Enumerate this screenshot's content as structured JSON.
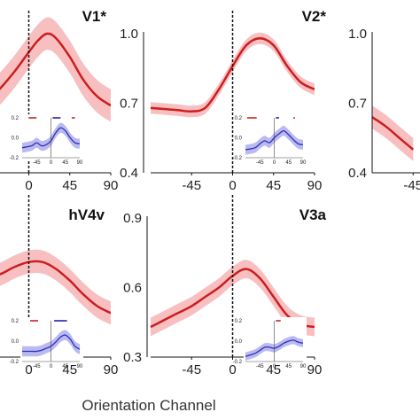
{
  "figure": {
    "xlabel": "Orientation Channel"
  },
  "chart_data": [
    {
      "type": "line",
      "title": "V1*",
      "xlim": [
        -90,
        90
      ],
      "ylim": [
        0.4,
        1.0
      ],
      "yticks": [],
      "xticks": [
        "0",
        "45",
        "90"
      ],
      "series": [
        {
          "x": [
            -90,
            -75,
            -60,
            -45,
            -30,
            -15,
            0,
            10,
            20,
            30,
            45,
            60,
            75,
            90
          ],
          "y": [
            0.62,
            0.64,
            0.67,
            0.71,
            0.77,
            0.84,
            0.92,
            0.97,
            1.0,
            0.98,
            0.9,
            0.8,
            0.73,
            0.69
          ],
          "err": [
            0.07,
            0.07,
            0.07,
            0.07,
            0.07,
            0.07,
            0.07,
            0.07,
            0.07,
            0.07,
            0.07,
            0.07,
            0.07,
            0.07
          ]
        }
      ],
      "inset": {
        "xticks": [
          "-45",
          "0",
          "45",
          "90"
        ],
        "yticks": [
          "0.2",
          "0.0",
          "-0.2"
        ],
        "ylim": [
          -0.2,
          0.2
        ],
        "series": [
          {
            "x": [
              -90,
              -60,
              -45,
              -30,
              -15,
              0,
              15,
              30,
              45,
              60,
              75,
              90
            ],
            "y": [
              -0.1,
              -0.08,
              -0.05,
              -0.08,
              -0.07,
              -0.03,
              0.05,
              0.1,
              0.07,
              0.0,
              -0.05,
              -0.06
            ],
            "err": [
              0.05,
              0.05,
              0.05,
              0.05,
              0.05,
              0.05,
              0.05,
              0.05,
              0.05,
              0.05,
              0.05,
              0.05
            ]
          }
        ],
        "sig_bars": [
          {
            "color": "#cc2222",
            "x": [
              -70,
              -45
            ]
          },
          {
            "color": "#2222aa",
            "x": [
              5,
              30
            ]
          },
          {
            "color": "#cc2222",
            "x": [
              65,
              75
            ]
          }
        ]
      }
    },
    {
      "type": "line",
      "title": "V2*",
      "xlim": [
        -90,
        90
      ],
      "ylim": [
        0.4,
        1.0
      ],
      "yticks": [
        "1.0",
        "0.7",
        "0.4"
      ],
      "xticks": [
        "-45",
        "0",
        "45",
        "90"
      ],
      "series": [
        {
          "x": [
            -90,
            -75,
            -60,
            -45,
            -30,
            -15,
            0,
            15,
            30,
            45,
            60,
            75,
            90
          ],
          "y": [
            0.68,
            0.675,
            0.67,
            0.665,
            0.68,
            0.76,
            0.86,
            0.95,
            0.98,
            0.95,
            0.86,
            0.79,
            0.76
          ],
          "err": [
            0.025,
            0.025,
            0.025,
            0.025,
            0.025,
            0.025,
            0.025,
            0.025,
            0.025,
            0.025,
            0.025,
            0.025,
            0.025
          ]
        }
      ],
      "inset": {
        "xticks": [
          "-45",
          "0",
          "45",
          "90"
        ],
        "yticks": [
          "0.2",
          "0.0",
          "-0.2"
        ],
        "ylim": [
          -0.2,
          0.2
        ],
        "series": [
          {
            "x": [
              -90,
              -60,
              -45,
              -30,
              -15,
              0,
              15,
              30,
              45,
              60,
              75,
              90
            ],
            "y": [
              -0.12,
              -0.1,
              -0.06,
              -0.03,
              -0.05,
              0.0,
              0.04,
              0.07,
              0.03,
              -0.02,
              -0.06,
              -0.07
            ],
            "err": [
              0.05,
              0.05,
              0.05,
              0.05,
              0.05,
              0.05,
              0.05,
              0.05,
              0.05,
              0.05,
              0.05,
              0.05
            ]
          }
        ],
        "sig_bars": [
          {
            "color": "#cc2222",
            "x": [
              -85,
              -55
            ]
          },
          {
            "color": "#2222aa",
            "x": [
              5,
              15
            ]
          },
          {
            "color": "#cc2222",
            "x": [
              60,
              65
            ]
          }
        ]
      }
    },
    {
      "type": "line",
      "title": "",
      "xlim": [
        -90,
        90
      ],
      "ylim": [
        0.4,
        1.0
      ],
      "yticks": [
        "1.0",
        "0.7",
        "0.4"
      ],
      "xticks": [
        "-45"
      ],
      "series": [
        {
          "x": [
            -90,
            -75,
            -60,
            -45
          ],
          "y": [
            0.64,
            0.6,
            0.55,
            0.5
          ],
          "err": [
            0.05,
            0.05,
            0.05,
            0.05
          ]
        }
      ]
    },
    {
      "type": "line",
      "title": "hV4v",
      "xlim": [
        -90,
        90
      ],
      "ylim": [
        0.3,
        0.9
      ],
      "yticks": [],
      "xticks": [
        "0",
        "45",
        "90"
      ],
      "series": [
        {
          "x": [
            -90,
            -75,
            -60,
            -45,
            -30,
            -15,
            0,
            15,
            30,
            45,
            60,
            75,
            90
          ],
          "y": [
            0.6,
            0.61,
            0.62,
            0.64,
            0.66,
            0.69,
            0.71,
            0.71,
            0.68,
            0.63,
            0.57,
            0.52,
            0.49
          ],
          "err": [
            0.05,
            0.05,
            0.05,
            0.05,
            0.05,
            0.05,
            0.05,
            0.05,
            0.05,
            0.05,
            0.05,
            0.05,
            0.05
          ]
        }
      ],
      "inset": {
        "xticks": [
          "-45",
          "0",
          "45",
          "90"
        ],
        "yticks": [
          "0.2",
          "0.0",
          "-0.2"
        ],
        "ylim": [
          -0.2,
          0.2
        ],
        "series": [
          {
            "x": [
              -90,
              -60,
              -45,
              -30,
              -15,
              0,
              15,
              30,
              45,
              60,
              75,
              90
            ],
            "y": [
              -0.1,
              -0.1,
              -0.1,
              -0.09,
              -0.07,
              -0.05,
              -0.01,
              0.04,
              0.06,
              0.02,
              -0.05,
              -0.08
            ],
            "err": [
              0.05,
              0.05,
              0.05,
              0.05,
              0.05,
              0.05,
              0.05,
              0.05,
              0.05,
              0.05,
              0.05,
              0.05
            ]
          }
        ],
        "sig_bars": [
          {
            "color": "#cc2222",
            "x": [
              -65,
              -40
            ]
          },
          {
            "color": "#2222aa",
            "x": [
              10,
              50
            ]
          }
        ]
      }
    },
    {
      "type": "line",
      "title": "V3a",
      "xlim": [
        -90,
        90
      ],
      "ylim": [
        0.3,
        0.9
      ],
      "yticks": [
        "0.9",
        "0.6",
        "0.3"
      ],
      "xticks": [
        "-45",
        "0",
        "45",
        "90"
      ],
      "series": [
        {
          "x": [
            -90,
            -75,
            -60,
            -45,
            -30,
            -15,
            0,
            15,
            30,
            45,
            60,
            75,
            90
          ],
          "y": [
            0.43,
            0.46,
            0.49,
            0.52,
            0.56,
            0.6,
            0.65,
            0.68,
            0.64,
            0.56,
            0.48,
            0.44,
            0.43
          ],
          "err": [
            0.04,
            0.04,
            0.04,
            0.04,
            0.04,
            0.04,
            0.04,
            0.04,
            0.04,
            0.04,
            0.04,
            0.04,
            0.04
          ]
        }
      ],
      "inset": {
        "xticks": [
          "-45",
          "0",
          "45",
          "90"
        ],
        "yticks": [
          "0.2",
          "0.0",
          "-0.2"
        ],
        "ylim": [
          -0.2,
          0.2
        ],
        "series": [
          {
            "x": [
              -90,
              -60,
              -45,
              -30,
              -15,
              0,
              15,
              30,
              45,
              60,
              75,
              90
            ],
            "y": [
              -0.15,
              -0.12,
              -0.09,
              -0.06,
              -0.06,
              -0.07,
              -0.05,
              -0.02,
              0.0,
              0.01,
              -0.01,
              -0.02
            ],
            "err": [
              0.04,
              0.04,
              0.04,
              0.04,
              0.04,
              0.04,
              0.04,
              0.04,
              0.04,
              0.04,
              0.04,
              0.04
            ]
          }
        ],
        "sig_bars": [
          {
            "color": "#cc2222",
            "x": [
              5,
              20
            ]
          }
        ]
      }
    }
  ],
  "colors": {
    "line": "#cc1e1e",
    "band": "#f7b4b6",
    "inset_line": "#2e2eb8",
    "inset_band": "#b3b3ee"
  }
}
